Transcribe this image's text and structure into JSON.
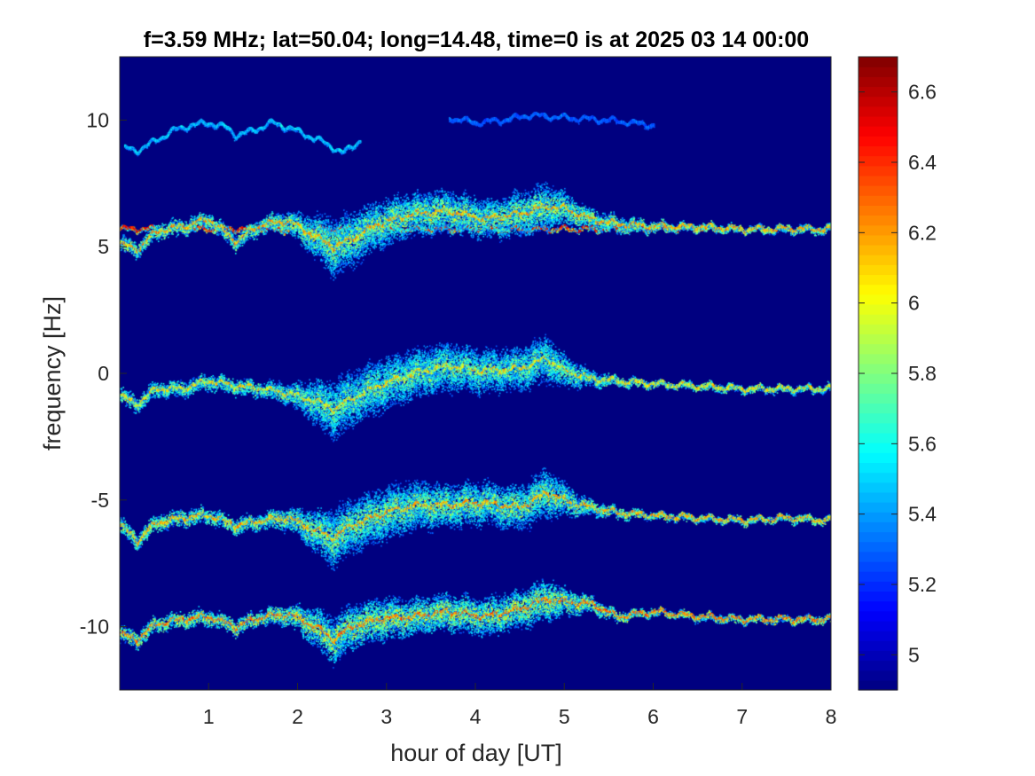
{
  "chart_data": {
    "type": "heatmap",
    "title": "f=3.59 MHz;  lat=50.04; long=14.48, time=0 is at 2025 03 14 00:00",
    "xlabel": "hour of day [UT]",
    "ylabel": "frequency [Hz]",
    "xlim": [
      0,
      8
    ],
    "ylim": [
      -12.5,
      12.5
    ],
    "x_ticks": [
      1,
      2,
      3,
      4,
      5,
      6,
      7,
      8
    ],
    "x_tick_labels": [
      "1",
      "2",
      "3",
      "4",
      "5",
      "6",
      "7",
      "8"
    ],
    "y_ticks": [
      10,
      5,
      0,
      -5,
      -10
    ],
    "y_tick_labels": [
      "10",
      "5",
      "0",
      "-5",
      "-10"
    ],
    "colorbar": {
      "colormap": "jet",
      "range": [
        4.9,
        6.7
      ],
      "ticks": [
        6.6,
        6.4,
        6.2,
        6,
        5.8,
        5.6,
        5.4,
        5.2,
        5
      ],
      "tick_labels": [
        "6.6",
        "6.4",
        "6.2",
        "6",
        "5.8",
        "5.6",
        "5.4",
        "5.2",
        "5"
      ]
    },
    "background_value": 4.9,
    "series": [
      {
        "trace": "upper",
        "x": [
          0.05,
          0.2,
          0.4,
          0.6,
          0.8,
          1.0,
          1.2,
          1.3,
          1.5,
          1.7,
          1.9,
          2.1,
          2.3,
          2.5,
          2.7
        ],
        "y": [
          8.9,
          8.8,
          9.2,
          9.6,
          9.8,
          9.9,
          9.7,
          9.4,
          9.6,
          9.9,
          9.7,
          9.4,
          9.1,
          8.7,
          9.2
        ],
        "intensity": 5.5
      },
      {
        "trace": "upper-faint",
        "x": [
          3.7,
          4.0,
          4.3,
          4.6,
          5.0,
          5.5,
          6.0
        ],
        "y": [
          10.1,
          9.9,
          10.0,
          10.2,
          10.1,
          10.0,
          9.8
        ],
        "intensity": 5.3
      },
      {
        "trace": "carrier",
        "x": [
          0.0,
          8.0
        ],
        "y": [
          5.7,
          5.7
        ],
        "intensity": 6.5
      },
      {
        "trace": "+5 Hz band",
        "x": [
          0.0,
          0.2,
          0.4,
          0.7,
          1.0,
          1.3,
          1.6,
          1.9,
          2.2,
          2.4,
          2.6,
          2.9,
          3.3,
          3.7,
          4.1,
          4.5,
          4.8,
          5.0,
          5.3,
          5.6,
          6.0,
          6.5,
          7.0,
          7.5,
          8.0
        ],
        "y": [
          5.1,
          4.9,
          5.6,
          5.8,
          6.1,
          5.2,
          5.9,
          6.0,
          5.4,
          5.0,
          5.3,
          5.9,
          6.3,
          6.4,
          6.1,
          6.3,
          6.6,
          6.5,
          6.1,
          5.9,
          5.8,
          5.8,
          5.7,
          5.7,
          5.7
        ],
        "spread": [
          0.3,
          0.3,
          0.3,
          0.3,
          0.3,
          0.3,
          0.3,
          0.4,
          0.8,
          1.1,
          1.0,
          0.9,
          0.8,
          0.8,
          0.7,
          0.8,
          0.9,
          0.6,
          0.4,
          0.3,
          0.2,
          0.15,
          0.15,
          0.15,
          0.15
        ],
        "intensity": 6.2
      },
      {
        "trace": "0 Hz band",
        "x": [
          0.0,
          0.2,
          0.4,
          0.7,
          1.0,
          1.3,
          1.6,
          1.9,
          2.2,
          2.4,
          2.6,
          2.9,
          3.3,
          3.7,
          4.1,
          4.5,
          4.8,
          5.0,
          5.3,
          5.6,
          6.0,
          6.5,
          7.0,
          7.5,
          8.0
        ],
        "y": [
          -0.9,
          -1.2,
          -0.6,
          -0.6,
          -0.3,
          -0.5,
          -0.6,
          -0.8,
          -1.1,
          -1.4,
          -1.0,
          -0.5,
          0.0,
          0.3,
          0.1,
          0.2,
          0.6,
          0.1,
          -0.2,
          -0.3,
          -0.4,
          -0.5,
          -0.6,
          -0.6,
          -0.6
        ],
        "spread": [
          0.3,
          0.3,
          0.3,
          0.3,
          0.3,
          0.3,
          0.3,
          0.4,
          0.8,
          1.1,
          1.0,
          1.0,
          0.9,
          0.9,
          0.8,
          0.8,
          0.9,
          0.6,
          0.3,
          0.2,
          0.15,
          0.15,
          0.15,
          0.15,
          0.15
        ],
        "intensity": 6.1
      },
      {
        "trace": "-5 Hz band",
        "x": [
          0.0,
          0.2,
          0.4,
          0.7,
          1.0,
          1.3,
          1.6,
          1.9,
          2.2,
          2.4,
          2.6,
          2.9,
          3.3,
          3.7,
          4.1,
          4.5,
          4.8,
          5.0,
          5.3,
          5.6,
          6.0,
          6.5,
          7.0,
          7.5,
          8.0
        ],
        "y": [
          -6.0,
          -6.6,
          -5.9,
          -5.7,
          -5.6,
          -6.0,
          -5.8,
          -5.7,
          -6.2,
          -6.5,
          -6.0,
          -5.6,
          -5.2,
          -5.2,
          -5.1,
          -5.3,
          -4.7,
          -5.0,
          -5.3,
          -5.5,
          -5.6,
          -5.7,
          -5.8,
          -5.7,
          -5.8
        ],
        "spread": [
          0.3,
          0.3,
          0.3,
          0.3,
          0.3,
          0.3,
          0.3,
          0.4,
          0.8,
          1.1,
          1.0,
          1.0,
          0.9,
          0.8,
          0.8,
          0.8,
          0.9,
          0.6,
          0.3,
          0.2,
          0.15,
          0.15,
          0.15,
          0.15,
          0.15
        ],
        "intensity": 6.2
      },
      {
        "trace": "-10 Hz band",
        "x": [
          0.0,
          0.2,
          0.4,
          0.7,
          1.0,
          1.3,
          1.6,
          1.9,
          2.2,
          2.4,
          2.6,
          2.9,
          3.3,
          3.7,
          4.1,
          4.5,
          4.8,
          5.0,
          5.3,
          5.6,
          6.0,
          6.5,
          7.0,
          7.5,
          8.0
        ],
        "y": [
          -10.3,
          -10.5,
          -9.9,
          -9.7,
          -9.6,
          -10.0,
          -9.6,
          -9.5,
          -10.0,
          -10.5,
          -10.0,
          -9.7,
          -9.6,
          -9.4,
          -9.6,
          -9.3,
          -8.9,
          -9.0,
          -9.1,
          -9.6,
          -9.4,
          -9.6,
          -9.7,
          -9.7,
          -9.7
        ],
        "spread": [
          0.3,
          0.3,
          0.3,
          0.3,
          0.3,
          0.3,
          0.3,
          0.4,
          0.7,
          0.9,
          0.8,
          0.8,
          0.7,
          0.7,
          0.7,
          0.7,
          0.8,
          0.5,
          0.3,
          0.2,
          0.15,
          0.15,
          0.15,
          0.15,
          0.15
        ],
        "intensity": 6.3
      }
    ]
  }
}
